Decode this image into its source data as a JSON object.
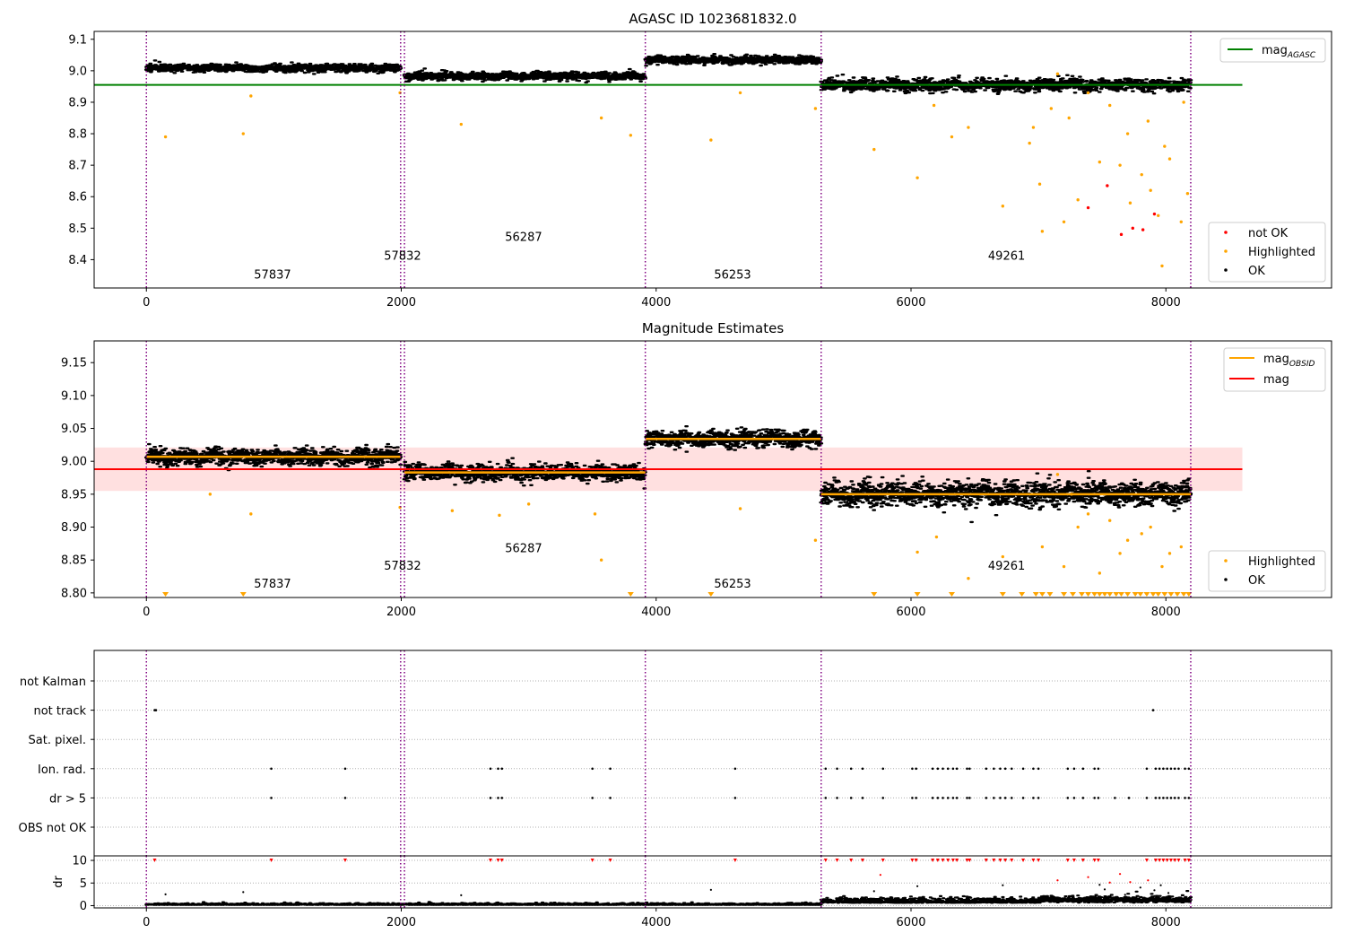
{
  "figure": {
    "x_ticks": [
      "0",
      "2000",
      "4000",
      "6000",
      "8000"
    ],
    "obsid_boundaries": [
      0,
      1995,
      2025,
      3915,
      5295,
      8195
    ]
  },
  "chart_data": [
    {
      "id": "agasc",
      "type": "scatter",
      "title": "AGASC ID 1023681832.0",
      "xlim": [
        -410,
        9300
      ],
      "ylim": [
        8.31,
        9.125
      ],
      "y_ticks": [
        "9.1",
        "9.0",
        "8.9",
        "8.8",
        "8.7",
        "8.6",
        "8.5",
        "8.4"
      ],
      "reference_line": {
        "name": "mag",
        "subscript": "AGASC",
        "value": 8.955,
        "x_range": [
          -410,
          8600
        ],
        "color": "#008000"
      },
      "legend_upper": [
        {
          "name": "mag",
          "subscript": "AGASC",
          "color": "#008000",
          "marker": "line"
        }
      ],
      "legend_lower": [
        {
          "name": "not OK",
          "color": "#ff0000",
          "marker": "dot"
        },
        {
          "name": "Highlighted",
          "color": "#ffa500",
          "marker": "dot"
        },
        {
          "name": "OK",
          "color": "#000000",
          "marker": "dot"
        }
      ],
      "obsid_segments": [
        {
          "label": "57837",
          "x_range": [
            0,
            1995
          ],
          "level": 9.009,
          "label_pos": [
            990,
            8.34
          ]
        },
        {
          "label": "57832",
          "x_range": [
            2025,
            3915
          ],
          "level": 8.983,
          "start_level": 8.993,
          "label_pos": [
            2010,
            8.4
          ]
        },
        {
          "label": "56287",
          "x_range": [
            2025,
            3915
          ],
          "level": 8.983,
          "label_pos": [
            2960,
            8.46
          ]
        },
        {
          "label": "56253",
          "x_range": [
            3915,
            5295
          ],
          "level": 9.034,
          "label_pos": [
            4600,
            8.34
          ]
        },
        {
          "label": "49261",
          "x_range": [
            5295,
            8195
          ],
          "level": 8.955,
          "label_pos": [
            6750,
            8.4
          ]
        }
      ],
      "highlighted_points": [
        [
          150,
          8.79
        ],
        [
          760,
          8.8
        ],
        [
          820,
          8.92
        ],
        [
          1990,
          8.93
        ],
        [
          2470,
          8.83
        ],
        [
          3570,
          8.85
        ],
        [
          3800,
          8.795
        ],
        [
          4430,
          8.78
        ],
        [
          4660,
          8.93
        ],
        [
          5250,
          8.88
        ],
        [
          5710,
          8.75
        ],
        [
          6050,
          8.66
        ],
        [
          6180,
          8.89
        ],
        [
          6320,
          8.79
        ],
        [
          6450,
          8.82
        ],
        [
          6720,
          8.57
        ],
        [
          6930,
          8.77
        ],
        [
          7010,
          8.64
        ],
        [
          7030,
          8.49
        ],
        [
          7200,
          8.52
        ],
        [
          7310,
          8.59
        ],
        [
          7480,
          8.71
        ],
        [
          7640,
          8.7
        ],
        [
          7720,
          8.58
        ],
        [
          7810,
          8.67
        ],
        [
          7880,
          8.62
        ],
        [
          7940,
          8.54
        ],
        [
          7970,
          8.38
        ],
        [
          8030,
          8.72
        ],
        [
          8120,
          8.52
        ],
        [
          8170,
          8.61
        ],
        [
          6960,
          8.82
        ],
        [
          7100,
          8.88
        ],
        [
          7240,
          8.85
        ],
        [
          7560,
          8.89
        ],
        [
          7700,
          8.8
        ],
        [
          7860,
          8.84
        ],
        [
          7990,
          8.76
        ],
        [
          8140,
          8.9
        ],
        [
          7150,
          8.99
        ],
        [
          7390,
          8.93
        ]
      ],
      "not_ok_points": [
        [
          7390,
          8.565
        ],
        [
          7540,
          8.635
        ],
        [
          7650,
          8.48
        ],
        [
          7740,
          8.5
        ],
        [
          7820,
          8.495
        ],
        [
          7910,
          8.545
        ]
      ]
    },
    {
      "id": "magnitude-estimates",
      "type": "scatter",
      "title": "Magnitude Estimates",
      "xlim": [
        -410,
        9300
      ],
      "ylim": [
        8.793,
        9.183
      ],
      "y_ticks": [
        "9.15",
        "9.10",
        "9.05",
        "9.00",
        "8.95",
        "8.90",
        "8.85",
        "8.80"
      ],
      "mean_line": {
        "name": "mag",
        "value": 8.988,
        "x_range": [
          -410,
          8600
        ],
        "color": "#ff0000",
        "band": [
          8.955,
          9.021
        ]
      },
      "legend_upper": [
        {
          "name": "mag",
          "subscript": "OBSID",
          "color": "#ffa500",
          "marker": "line"
        },
        {
          "name": "mag",
          "color": "#ff0000",
          "marker": "line"
        }
      ],
      "legend_lower": [
        {
          "name": "Highlighted",
          "color": "#ffa500",
          "marker": "dot"
        },
        {
          "name": "OK",
          "color": "#000000",
          "marker": "dot"
        }
      ],
      "obsid_segments": [
        {
          "label": "57837",
          "x_range": [
            0,
            1995
          ],
          "level": 9.007,
          "label_pos": [
            990,
            8.808
          ]
        },
        {
          "label": "57832",
          "x_range": [
            2025,
            3915
          ],
          "level": 8.983,
          "start_level": 8.993,
          "label_pos": [
            2010,
            8.835
          ]
        },
        {
          "label": "56287",
          "x_range": [
            2025,
            3915
          ],
          "level": 8.983,
          "label_pos": [
            2960,
            8.862
          ]
        },
        {
          "label": "56253",
          "x_range": [
            3915,
            5295
          ],
          "level": 9.034,
          "label_pos": [
            4600,
            8.808
          ]
        },
        {
          "label": "49261",
          "x_range": [
            5295,
            8195
          ],
          "level": 8.95,
          "label_pos": [
            6750,
            8.835
          ]
        }
      ],
      "highlighted_points": [
        [
          500,
          8.95
        ],
        [
          820,
          8.92
        ],
        [
          1990,
          8.93
        ],
        [
          2400,
          8.925
        ],
        [
          2770,
          8.918
        ],
        [
          3000,
          8.935
        ],
        [
          3520,
          8.92
        ],
        [
          3570,
          8.85
        ],
        [
          4660,
          8.928
        ],
        [
          5250,
          8.88
        ],
        [
          6050,
          8.862
        ],
        [
          6200,
          8.885
        ],
        [
          6450,
          8.822
        ],
        [
          6720,
          8.855
        ],
        [
          7030,
          8.87
        ],
        [
          7200,
          8.84
        ],
        [
          7310,
          8.9
        ],
        [
          7480,
          8.83
        ],
        [
          7640,
          8.86
        ],
        [
          7810,
          8.89
        ],
        [
          7970,
          8.84
        ],
        [
          8120,
          8.87
        ],
        [
          7150,
          8.98
        ],
        [
          7260,
          8.95
        ],
        [
          7390,
          8.92
        ],
        [
          7560,
          8.91
        ],
        [
          7700,
          8.88
        ],
        [
          7880,
          8.9
        ],
        [
          8030,
          8.86
        ]
      ],
      "clipped_points_x": [
        150,
        760,
        3800,
        4430,
        5710,
        6050,
        6320,
        6720,
        6870,
        6980,
        7030,
        7090,
        7200,
        7270,
        7340,
        7390,
        7440,
        7480,
        7520,
        7560,
        7610,
        7650,
        7700,
        7760,
        7800,
        7850,
        7900,
        7940,
        7990,
        8040,
        8090,
        8140,
        8180
      ]
    },
    {
      "id": "flags",
      "type": "scatter",
      "xlim": [
        -410,
        9300
      ],
      "categories": [
        "not Kalman",
        "not track",
        "Sat. pixel.",
        "Ion. rad.",
        "dr > 5",
        "OBS not OK"
      ],
      "flag_points": {
        "not track": [
          65,
          75,
          7900
        ],
        "Ion. rad.": [
          980,
          1560,
          2700,
          2760,
          2790,
          3500,
          3640,
          4620,
          5330,
          5420,
          5530,
          5620,
          5780,
          6010,
          6040,
          6170,
          6210,
          6250,
          6290,
          6330,
          6360,
          6440,
          6460,
          6590,
          6650,
          6700,
          6740,
          6790,
          6880,
          6960,
          7000,
          7230,
          7280,
          7350,
          7440,
          7470,
          7850,
          7920,
          7950,
          7980,
          8010,
          8040,
          8070,
          8100,
          8150,
          8180
        ],
        "dr > 5": [
          980,
          1560,
          2700,
          2760,
          2790,
          3500,
          3640,
          4620,
          5330,
          5420,
          5530,
          5620,
          5780,
          6010,
          6040,
          6170,
          6210,
          6250,
          6290,
          6330,
          6360,
          6440,
          6460,
          6590,
          6650,
          6700,
          6740,
          6790,
          6880,
          6960,
          7000,
          7230,
          7280,
          7350,
          7440,
          7470,
          7600,
          7710,
          7850,
          7920,
          7950,
          7980,
          8010,
          8040,
          8070,
          8100,
          8150,
          8180
        ]
      }
    },
    {
      "id": "dr",
      "type": "scatter",
      "xlim": [
        -410,
        9300
      ],
      "ylim": [
        -0.5,
        11
      ],
      "ylabel": "dr",
      "y_ticks": [
        "10",
        "5",
        "0"
      ],
      "y_tick_values": [
        10,
        5,
        0
      ],
      "clipped_points_x": [
        65,
        980,
        1560,
        2700,
        2760,
        2790,
        3500,
        3640,
        4620,
        5330,
        5420,
        5530,
        5620,
        5780,
        6010,
        6040,
        6170,
        6210,
        6250,
        6290,
        6330,
        6360,
        6440,
        6460,
        6590,
        6650,
        6700,
        6740,
        6790,
        6880,
        6960,
        7000,
        7230,
        7280,
        7350,
        7440,
        7470,
        7850,
        7920,
        7950,
        7980,
        8010,
        8040,
        8070,
        8100,
        8150,
        8180
      ],
      "outlier_points": [
        [
          150,
          2.5
        ],
        [
          760,
          3.0
        ],
        [
          2470,
          2.3
        ],
        [
          4430,
          3.5
        ],
        [
          5710,
          3.2
        ],
        [
          5760,
          6.8
        ],
        [
          6050,
          4.3
        ],
        [
          6720,
          4.5
        ],
        [
          7150,
          5.6
        ],
        [
          7390,
          6.3
        ],
        [
          7480,
          4.6
        ],
        [
          7520,
          3.6
        ],
        [
          7560,
          5.1
        ],
        [
          7640,
          7.0
        ],
        [
          7720,
          5.2
        ],
        [
          7800,
          4.0
        ],
        [
          7860,
          5.6
        ],
        [
          7910,
          3.4
        ],
        [
          7960,
          4.5
        ],
        [
          8020,
          2.8
        ],
        [
          7680,
          2.4
        ]
      ]
    }
  ]
}
